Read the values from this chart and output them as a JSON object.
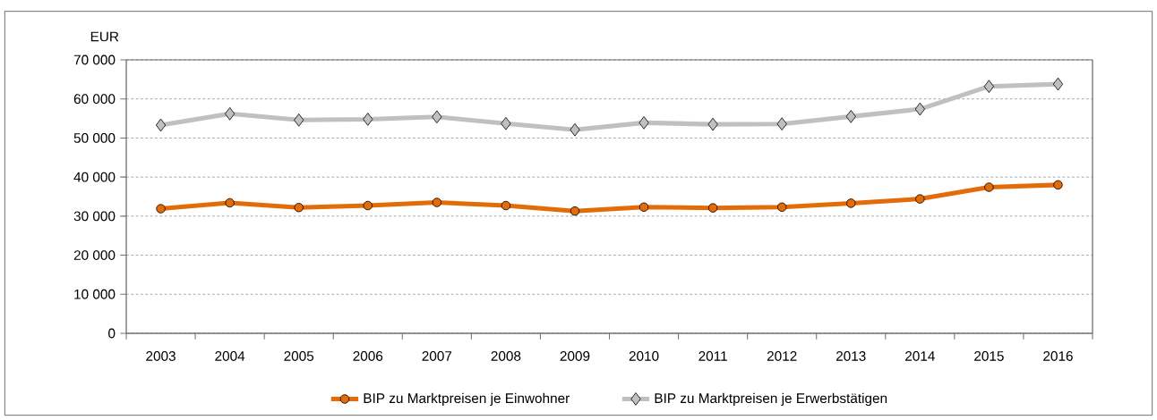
{
  "chart_data": {
    "type": "line",
    "ylabel": "EUR",
    "categories": [
      "2003",
      "2004",
      "2005",
      "2006",
      "2007",
      "2008",
      "2009",
      "2010",
      "2011",
      "2012",
      "2013",
      "2014",
      "2015",
      "2016"
    ],
    "series": [
      {
        "name": "BIP zu Marktpreisen je Einwohner",
        "color": "#e36c09",
        "marker": "circle",
        "values": [
          31900,
          33400,
          32200,
          32700,
          33500,
          32700,
          31300,
          32300,
          32100,
          32300,
          33300,
          34400,
          37400,
          38000
        ]
      },
      {
        "name": "BIP zu Marktpreisen je Erwerbstätigen",
        "color": "#c0c0c0",
        "marker": "diamond",
        "values": [
          53300,
          56200,
          54600,
          54800,
          55400,
          53700,
          52100,
          53900,
          53500,
          53600,
          55500,
          57400,
          63200,
          63800
        ]
      }
    ],
    "ylim": [
      0,
      70000
    ],
    "yticks": [
      {
        "value": 0,
        "label": "0"
      },
      {
        "value": 10000,
        "label": "10 000"
      },
      {
        "value": 20000,
        "label": "20 000"
      },
      {
        "value": 30000,
        "label": "30 000"
      },
      {
        "value": 40000,
        "label": "40 000"
      },
      {
        "value": 50000,
        "label": "50 000"
      },
      {
        "value": 60000,
        "label": "60 000"
      },
      {
        "value": 70000,
        "label": "70 000"
      }
    ],
    "grid": "y",
    "legend": "bottom"
  }
}
